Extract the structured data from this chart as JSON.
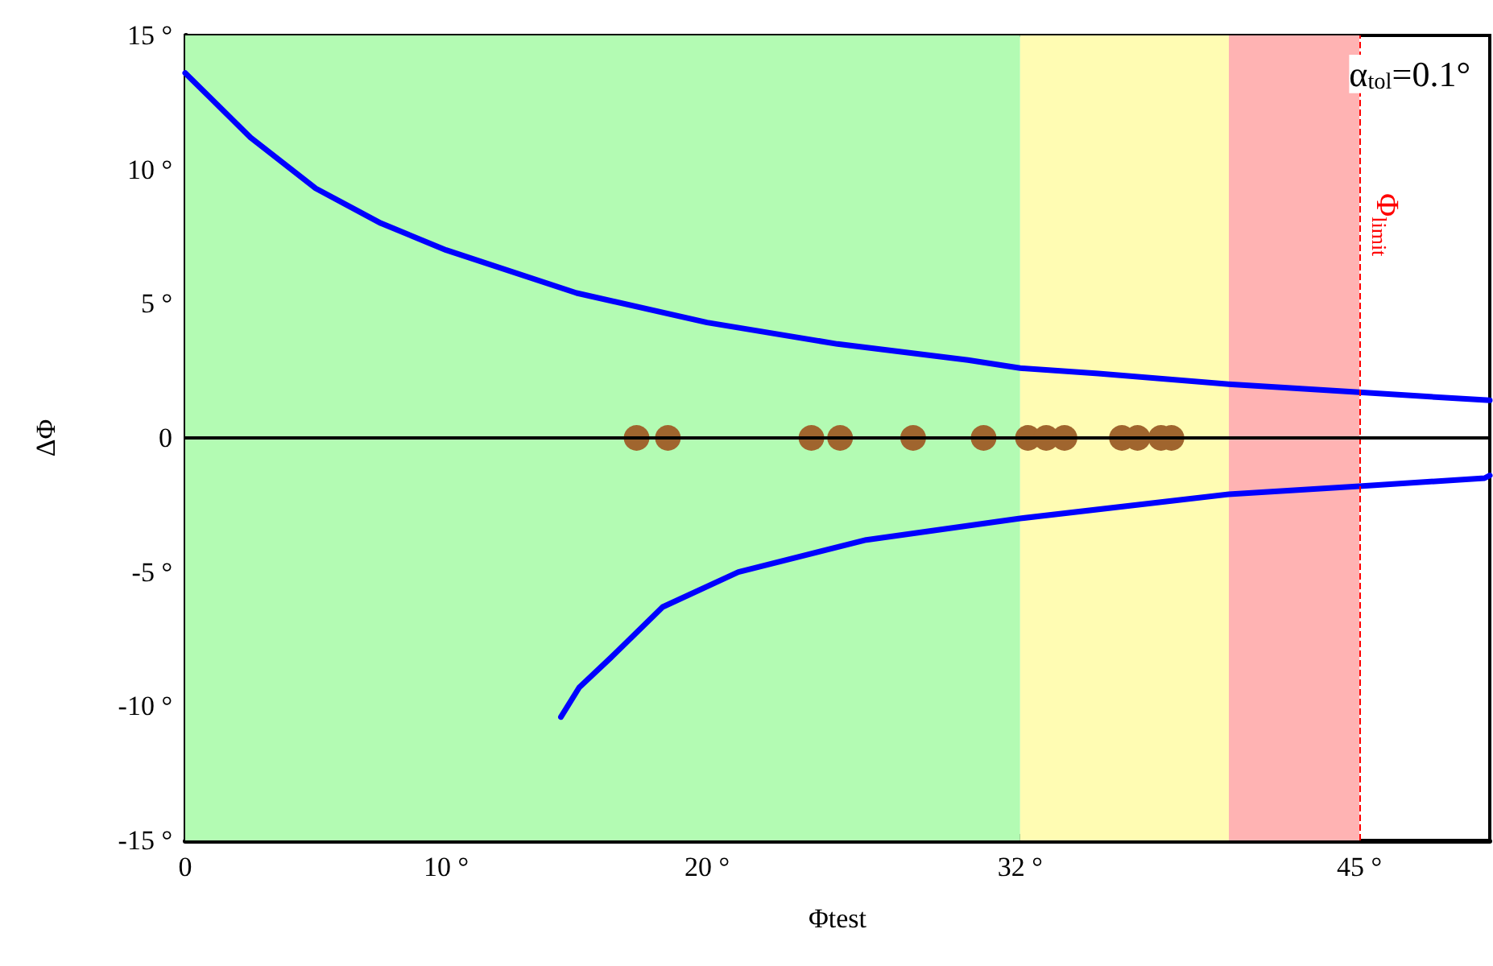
{
  "chart_data": {
    "type": "line",
    "xlabel": "Φtest",
    "ylabel": "ΔΦ",
    "xlim": [
      0,
      50
    ],
    "ylim": [
      -15,
      15
    ],
    "xticks": [
      0,
      {
        "value": 10,
        "label": "10 °"
      },
      {
        "value": 20,
        "label": "20 °"
      },
      {
        "value": 32,
        "label": "32 °"
      },
      {
        "value": 45,
        "label": "45 °"
      }
    ],
    "yticks": [
      {
        "value": -15,
        "label": "-15 °"
      },
      {
        "value": -10,
        "label": "-10 °"
      },
      {
        "value": -5,
        "label": "-5 °"
      },
      0,
      {
        "value": 5,
        "label": "5 °"
      },
      {
        "value": 10,
        "label": "10 °"
      },
      {
        "value": 15,
        "label": "15 °"
      }
    ],
    "series": [
      {
        "color": "#0000ff",
        "x": [
          0,
          2.5,
          5,
          7.5,
          10,
          15,
          20,
          25,
          30,
          32,
          35,
          40,
          45,
          50
        ],
        "values": [
          13.6,
          11.2,
          9.3,
          8.0,
          7.0,
          5.4,
          4.3,
          3.5,
          2.9,
          2.6,
          2.4,
          2.0,
          1.7,
          1.4
        ]
      },
      {
        "color": "#0000ff",
        "x": [
          14.4,
          15.1,
          16.3,
          18.3,
          21.2,
          26.1,
          32.0,
          40.0,
          45.0,
          49.8,
          50
        ],
        "values": [
          -10.4,
          -9.3,
          -8.2,
          -6.3,
          -5.0,
          -3.8,
          -3.0,
          -2.1,
          -1.8,
          -1.5,
          -1.4
        ]
      },
      {
        "type": "scatter",
        "marker": "circle",
        "color": "#a0652e",
        "x": [
          17.3,
          18.5,
          24.0,
          25.1,
          27.9,
          30.6,
          32.3,
          33.0,
          33.7,
          35.9,
          36.5,
          37.4,
          37.8
        ],
        "values": [
          0,
          0,
          0,
          0,
          0,
          0,
          0,
          0,
          0,
          0,
          0,
          0,
          0
        ]
      }
    ],
    "bands": [
      {
        "axis": "x",
        "from": 0,
        "to": 32,
        "color": "#b3fbb3"
      },
      {
        "axis": "x",
        "from": 32,
        "to": 40,
        "color": "#fffcb3"
      },
      {
        "axis": "x",
        "from": 40,
        "to": 45,
        "color": "#ffb3b3"
      }
    ],
    "ref_lines": [
      {
        "axis": "x",
        "value": 45,
        "label": "Φ$_{limit}$",
        "color": "#ff0000",
        "line_style": "dashed"
      },
      {
        "axis": "y",
        "value": 0,
        "color": "#000000",
        "line_style": "solid"
      }
    ],
    "annotations": [
      "α$_{tol}$=0.1°"
    ],
    "grid": false,
    "line_style": "solid"
  }
}
